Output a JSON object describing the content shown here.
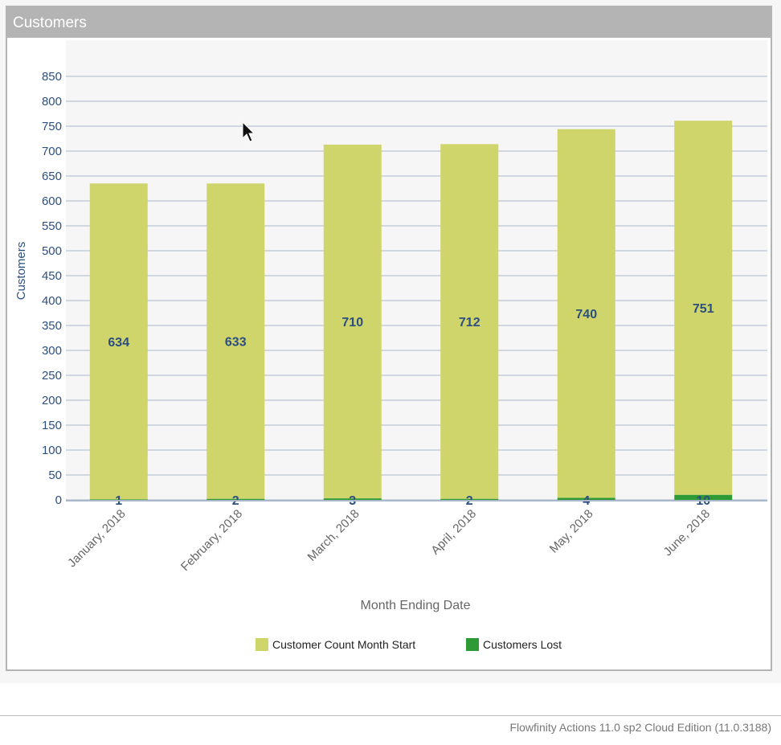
{
  "panel": {
    "title": "Customers"
  },
  "footer": {
    "text": "Flowfinity Actions 11.0 sp2 Cloud Edition (11.0.3188)"
  },
  "colors": {
    "month_start": "#cfd46b",
    "lost": "#2e9a35",
    "axis_text": "#2c4f80",
    "grid": "#a9b8c9",
    "plot_bg": "#f6f6f6"
  },
  "chart_data": {
    "type": "bar",
    "stacked": true,
    "xlabel": "Month Ending Date",
    "ylabel": "Customers",
    "ylim": [
      0,
      850
    ],
    "yticks": [
      0,
      50,
      100,
      150,
      200,
      250,
      300,
      350,
      400,
      450,
      500,
      550,
      600,
      650,
      700,
      750,
      800,
      850
    ],
    "grid": true,
    "legend_position": "bottom-center",
    "categories": [
      "January, 2018",
      "February, 2018",
      "March, 2018",
      "April, 2018",
      "May, 2018",
      "June, 2018"
    ],
    "series": [
      {
        "name": "Customers Lost",
        "values": [
          1,
          2,
          3,
          2,
          4,
          10
        ],
        "color": "#2e9a35"
      },
      {
        "name": "Customer Count Month Start",
        "values": [
          634,
          633,
          710,
          712,
          740,
          751
        ],
        "color": "#cfd46b"
      }
    ],
    "legend_order": [
      "Customer Count Month Start",
      "Customers Lost"
    ]
  }
}
